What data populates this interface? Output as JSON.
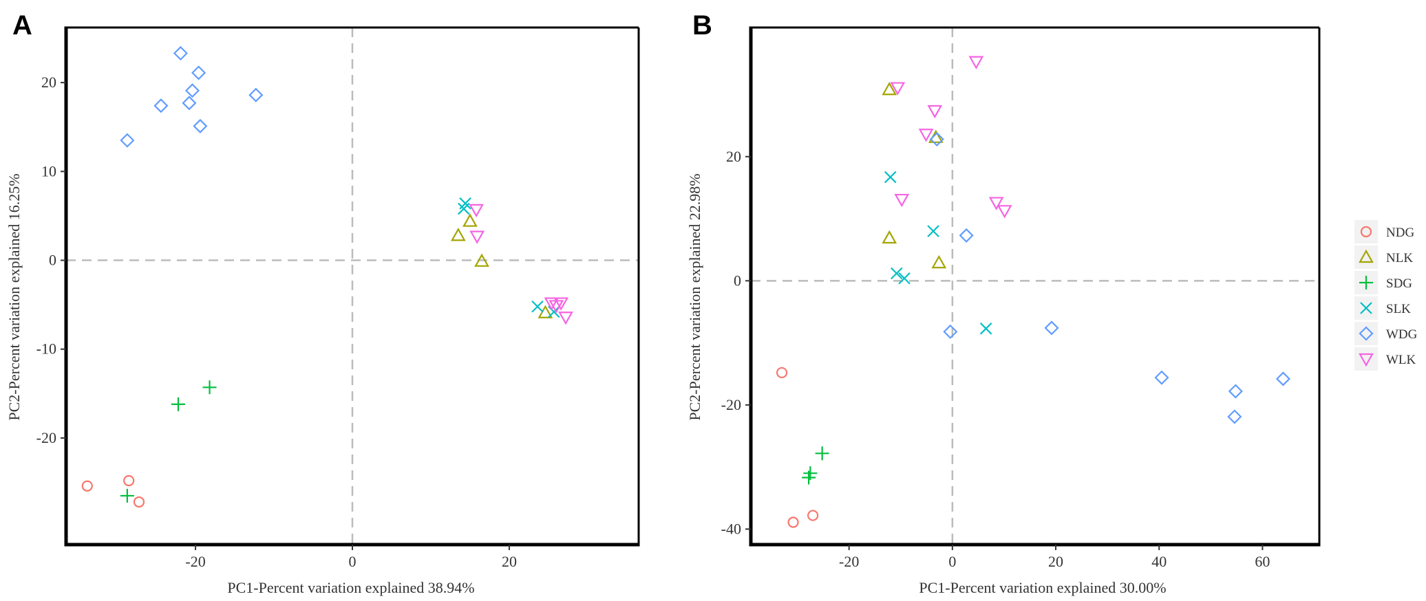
{
  "chart_data": [
    {
      "panel": "A",
      "type": "scatter",
      "xlabel": "PC1-Percent variation explained 38.94%",
      "ylabel": "PC2-Percent variation explained 16.25%",
      "xlim": [
        -36.5,
        36.5
      ],
      "ylim": [
        -32,
        26.2
      ],
      "xticks": [
        -20,
        0,
        20
      ],
      "yticks": [
        -20,
        -10,
        0,
        10,
        20
      ],
      "grid": false,
      "reference_lines": {
        "x": 0,
        "y": 0
      },
      "series": [
        {
          "name": "NDG",
          "points": [
            [
              -33.8,
              -25.4
            ],
            [
              -28.5,
              -24.8
            ],
            [
              -27.2,
              -27.2
            ]
          ]
        },
        {
          "name": "NLK",
          "points": [
            [
              13.5,
              2.8
            ],
            [
              15.0,
              4.4
            ],
            [
              16.5,
              -0.1
            ],
            [
              24.6,
              -5.9
            ]
          ]
        },
        {
          "name": "SDG",
          "points": [
            [
              -18.2,
              -14.3
            ],
            [
              -22.2,
              -16.2
            ],
            [
              -28.7,
              -26.5
            ]
          ]
        },
        {
          "name": "SLK",
          "points": [
            [
              14.2,
              5.8
            ],
            [
              14.4,
              6.4
            ],
            [
              23.6,
              -5.2
            ],
            [
              25.7,
              -5.8
            ]
          ]
        },
        {
          "name": "WDG",
          "points": [
            [
              -21.9,
              23.3
            ],
            [
              -19.6,
              21.1
            ],
            [
              -20.4,
              19.1
            ],
            [
              -20.8,
              17.7
            ],
            [
              -24.4,
              17.4
            ],
            [
              -19.4,
              15.1
            ],
            [
              -28.7,
              13.5
            ],
            [
              -12.3,
              18.6
            ]
          ]
        },
        {
          "name": "WLK",
          "points": [
            [
              15.8,
              5.7
            ],
            [
              15.9,
              2.7
            ],
            [
              25.4,
              -4.8
            ],
            [
              26.0,
              -5.1
            ],
            [
              26.6,
              -4.8
            ],
            [
              27.2,
              -6.4
            ]
          ]
        }
      ]
    },
    {
      "panel": "B",
      "type": "scatter",
      "xlabel": "PC1-Percent variation explained 30.00%",
      "ylabel": "PC2-Percent variation explained 22.98%",
      "xlim": [
        -39,
        71
      ],
      "ylim": [
        -42.5,
        40.8
      ],
      "xticks": [
        -20,
        0,
        20,
        40,
        60
      ],
      "yticks": [
        -40,
        -20,
        0,
        20
      ],
      "grid": false,
      "reference_lines": {
        "x": 0,
        "y": 0
      },
      "series": [
        {
          "name": "NDG",
          "points": [
            [
              -33.0,
              -14.8
            ],
            [
              -30.8,
              -38.9
            ],
            [
              -27.0,
              -37.8
            ]
          ]
        },
        {
          "name": "NLK",
          "points": [
            [
              -12.2,
              30.8
            ],
            [
              -3.2,
              23.1
            ],
            [
              -12.2,
              6.9
            ],
            [
              -2.6,
              2.9
            ]
          ]
        },
        {
          "name": "SDG",
          "points": [
            [
              -25.2,
              -27.8
            ],
            [
              -27.5,
              -31.0
            ],
            [
              -27.8,
              -31.7
            ]
          ]
        },
        {
          "name": "SLK",
          "points": [
            [
              -12.0,
              16.7
            ],
            [
              -3.7,
              8.0
            ],
            [
              -10.8,
              1.2
            ],
            [
              -9.3,
              0.4
            ],
            [
              6.5,
              -7.7
            ]
          ]
        },
        {
          "name": "WDG",
          "points": [
            [
              -3.0,
              22.8
            ],
            [
              2.7,
              7.3
            ],
            [
              -0.4,
              -8.2
            ],
            [
              19.2,
              -7.6
            ],
            [
              40.5,
              -15.6
            ],
            [
              54.8,
              -17.8
            ],
            [
              54.6,
              -21.9
            ],
            [
              64.0,
              -15.8
            ]
          ]
        },
        {
          "name": "WLK",
          "points": [
            [
              4.6,
              35.3
            ],
            [
              -10.6,
              31.1
            ],
            [
              -3.4,
              27.4
            ],
            [
              -5.1,
              23.6
            ],
            [
              -9.8,
              13.1
            ],
            [
              8.5,
              12.6
            ],
            [
              10.1,
              11.3
            ]
          ]
        }
      ]
    }
  ],
  "panels": {
    "A": {
      "label": "A"
    },
    "B": {
      "label": "B"
    }
  },
  "legend": {
    "position": "right",
    "items": [
      {
        "name": "NDG",
        "shape": "circle",
        "color": "#F8766D"
      },
      {
        "name": "NLK",
        "shape": "triangle-up",
        "color": "#A3A500"
      },
      {
        "name": "SDG",
        "shape": "plus",
        "color": "#00BF3C"
      },
      {
        "name": "SLK",
        "shape": "x",
        "color": "#00BFC4"
      },
      {
        "name": "WDG",
        "shape": "diamond",
        "color": "#619CFF"
      },
      {
        "name": "WLK",
        "shape": "triangle-down",
        "color": "#F564E3"
      }
    ]
  },
  "styles": {
    "reference_line_color": "#bbbbbb",
    "frame_color": "#000000",
    "legend_key_background": "#f2f2f2"
  }
}
